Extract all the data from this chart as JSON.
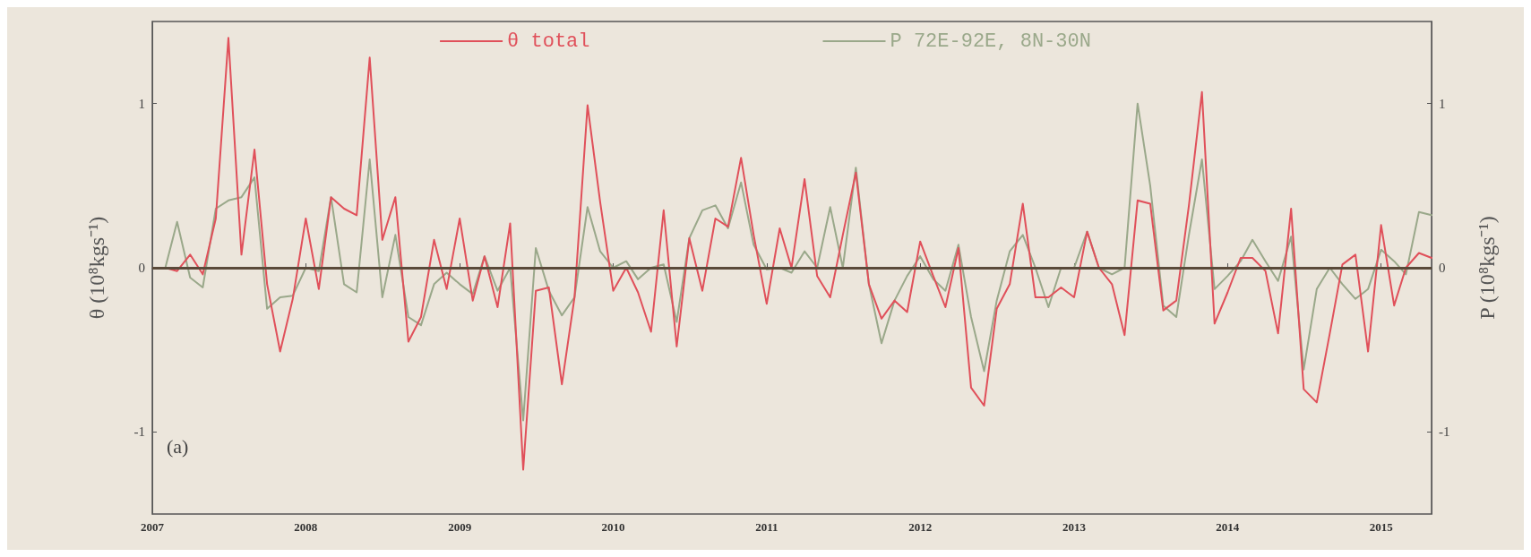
{
  "chart_data": {
    "type": "line",
    "ylabel": "θ (10⁸kgs⁻¹)",
    "y2label": "P (10⁸kgs⁻¹)",
    "x": [
      "2007-02",
      "2007-03",
      "2007-04",
      "2007-05",
      "2007-06",
      "2007-07",
      "2007-08",
      "2007-09",
      "2007-10",
      "2007-11",
      "2007-12",
      "2008-01",
      "2008-02",
      "2008-03",
      "2008-04",
      "2008-05",
      "2008-06",
      "2008-07",
      "2008-08",
      "2008-09",
      "2008-10",
      "2008-11",
      "2008-12",
      "2009-01",
      "2009-02",
      "2009-03",
      "2009-04",
      "2009-05",
      "2009-06",
      "2009-07",
      "2009-08",
      "2009-09",
      "2009-10",
      "2009-11",
      "2009-12",
      "2010-01",
      "2010-02",
      "2010-03",
      "2010-04",
      "2010-05",
      "2010-06",
      "2010-07",
      "2010-08",
      "2010-09",
      "2010-10",
      "2010-11",
      "2010-12",
      "2011-01",
      "2011-02",
      "2011-03",
      "2011-04",
      "2011-05",
      "2011-06",
      "2011-07",
      "2011-08",
      "2011-09",
      "2011-10",
      "2011-11",
      "2011-12",
      "2012-01",
      "2012-02",
      "2012-03",
      "2012-04",
      "2012-05",
      "2012-06",
      "2012-07",
      "2012-08",
      "2012-09",
      "2012-10",
      "2012-11",
      "2012-12",
      "2013-01",
      "2013-02",
      "2013-03",
      "2013-04",
      "2013-05",
      "2013-06",
      "2013-07",
      "2013-08",
      "2013-09",
      "2013-10",
      "2013-11",
      "2013-12",
      "2014-01",
      "2014-02",
      "2014-03",
      "2014-04",
      "2014-05",
      "2014-06",
      "2014-07",
      "2014-08",
      "2014-09",
      "2014-10",
      "2014-11",
      "2014-12",
      "2015-01",
      "2015-02",
      "2015-03",
      "2015-04",
      "2015-05"
    ],
    "series": [
      {
        "name": "θ total",
        "color": "#e0505a",
        "values": [
          0,
          -0.02,
          0.08,
          -0.04,
          0.3,
          1.4,
          0.08,
          0.72,
          -0.1,
          -0.51,
          -0.19,
          0.3,
          -0.13,
          0.43,
          0.36,
          0.32,
          1.28,
          0.17,
          0.43,
          -0.45,
          -0.3,
          0.17,
          -0.13,
          0.3,
          -0.2,
          0.07,
          -0.24,
          0.27,
          -1.23,
          -0.14,
          -0.12,
          -0.71,
          -0.18,
          0.99,
          0.4,
          -0.14,
          0.0,
          -0.15,
          -0.39,
          0.35,
          -0.48,
          0.18,
          -0.14,
          0.3,
          0.25,
          0.67,
          0.2,
          -0.22,
          0.24,
          0.0,
          0.54,
          -0.05,
          -0.18,
          0.2,
          0.58,
          -0.1,
          -0.31,
          -0.2,
          -0.27,
          0.16,
          -0.05,
          -0.24,
          0.12,
          -0.73,
          -0.84,
          -0.25,
          -0.1,
          0.39,
          -0.18,
          -0.18,
          -0.12,
          -0.18,
          0.22,
          0.0,
          -0.1,
          -0.41,
          0.41,
          0.39,
          -0.26,
          -0.2,
          0.38,
          1.07,
          -0.34,
          -0.15,
          0.06,
          0.06,
          -0.02,
          -0.4,
          0.36,
          -0.74,
          -0.82,
          -0.4,
          0.02,
          0.08,
          -0.51,
          0.26,
          -0.23,
          0.0,
          0.09,
          0.06
        ]
      },
      {
        "name": "P 72E-92E, 8N-30N",
        "color": "#9aa88a",
        "values": [
          0,
          0.28,
          -0.06,
          -0.12,
          0.36,
          0.41,
          0.43,
          0.55,
          -0.25,
          -0.18,
          -0.17,
          0.0,
          -0.02,
          0.43,
          -0.1,
          -0.15,
          0.66,
          -0.18,
          0.2,
          -0.3,
          -0.35,
          -0.1,
          -0.03,
          -0.1,
          -0.16,
          0.07,
          -0.14,
          0.0,
          -0.93,
          0.12,
          -0.14,
          -0.29,
          -0.18,
          0.37,
          0.1,
          0.0,
          0.04,
          -0.07,
          0.0,
          0.02,
          -0.33,
          0.18,
          0.35,
          0.38,
          0.24,
          0.52,
          0.14,
          -0.01,
          0.0,
          -0.03,
          0.1,
          0.0,
          0.37,
          0.0,
          0.61,
          -0.1,
          -0.46,
          -0.2,
          -0.05,
          0.07,
          -0.07,
          -0.14,
          0.14,
          -0.3,
          -0.63,
          -0.2,
          0.1,
          0.2,
          0.0,
          -0.24,
          0.0,
          0.0,
          0.22,
          0.0,
          -0.04,
          0.0,
          1.0,
          0.5,
          -0.23,
          -0.3,
          0.2,
          0.66,
          -0.13,
          -0.05,
          0.04,
          0.17,
          0.04,
          -0.08,
          0.19,
          -0.62,
          -0.13,
          0.0,
          -0.1,
          -0.19,
          -0.13,
          0.11,
          0.04,
          -0.04,
          0.34,
          0.32
        ]
      }
    ],
    "xlim": [
      "2007-01",
      "2015-05"
    ],
    "xticks": [
      "2007",
      "2008",
      "2009",
      "2010",
      "2011",
      "2012",
      "2013",
      "2014",
      "2015"
    ],
    "ylim": [
      -1.5,
      1.5
    ],
    "yticks": [
      -1,
      0,
      1
    ],
    "y2lim": [
      -1.5,
      1.5
    ],
    "y2ticks": [
      -1,
      0,
      1
    ],
    "ref_lines": [
      {
        "axis": "y",
        "value": 0,
        "label": null,
        "color": "#5a4a3a"
      }
    ],
    "annotations": [
      "(a)"
    ],
    "grid": false,
    "legend": "top",
    "marker": "none",
    "line_style": "solid"
  }
}
